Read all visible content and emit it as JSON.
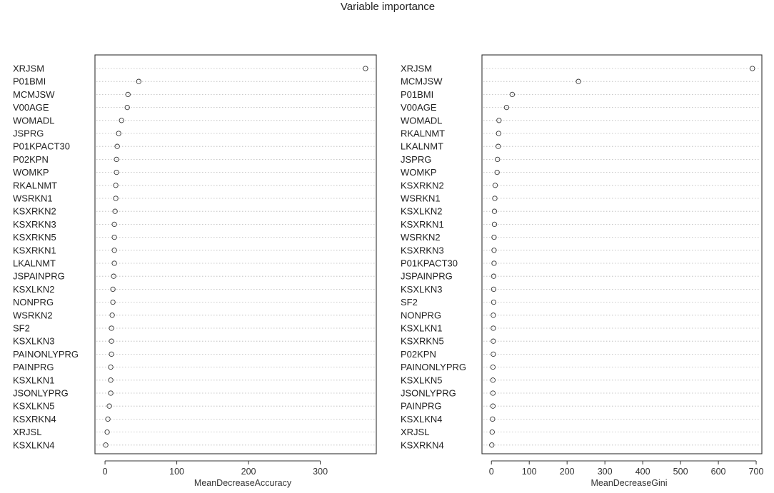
{
  "title": "Variable importance",
  "chart_data": [
    {
      "type": "scatter",
      "xlabel": "MeanDecreaseAccuracy",
      "xlim": [
        -14,
        378
      ],
      "xticks": [
        0,
        100,
        200,
        300
      ],
      "grid": "dotted horizontal guide per variable",
      "categories": [
        "XRJSM",
        "P01BMI",
        "MCMJSW",
        "V00AGE",
        "WOMADL",
        "JSPRG",
        "P01KPACT30",
        "P02KPN",
        "WOMKP",
        "RKALNMT",
        "WSRKN1",
        "KSXRKN2",
        "KSXRKN3",
        "KSXRKN5",
        "KSXRKN1",
        "LKALNMT",
        "JSPAINPRG",
        "KSXLKN2",
        "NONPRG",
        "WSRKN2",
        "SF2",
        "KSXLKN3",
        "PAINONLYPRG",
        "PAINPRG",
        "KSXLKN1",
        "JSONLYPRG",
        "KSXLKN5",
        "KSXRKN4",
        "XRJSL",
        "KSXLKN4"
      ],
      "values": [
        363,
        47,
        32,
        31,
        23,
        19,
        17,
        16,
        16,
        15,
        15,
        14,
        13,
        13,
        13,
        13,
        12,
        11,
        11,
        10,
        9,
        9,
        9,
        8,
        8,
        8,
        6,
        4,
        3,
        1
      ]
    },
    {
      "type": "scatter",
      "xlabel": "MeanDecreaseGini",
      "xlim": [
        -25,
        715
      ],
      "xticks": [
        0,
        100,
        200,
        300,
        400,
        500,
        600,
        700
      ],
      "grid": "dotted horizontal guide per variable",
      "categories": [
        "XRJSM",
        "MCMJSW",
        "P01BMI",
        "V00AGE",
        "WOMADL",
        "RKALNMT",
        "LKALNMT",
        "JSPRG",
        "WOMKP",
        "KSXRKN2",
        "WSRKN1",
        "KSXLKN2",
        "KSXRKN1",
        "WSRKN2",
        "KSXRKN3",
        "P01KPACT30",
        "JSPAINPRG",
        "KSXLKN3",
        "SF2",
        "NONPRG",
        "KSXLKN1",
        "KSXRKN5",
        "P02KPN",
        "PAINONLYPRG",
        "KSXLKN5",
        "JSONLYPRG",
        "PAINPRG",
        "KSXLKN4",
        "XRJSL",
        "KSXRKN4"
      ],
      "values": [
        690,
        230,
        55,
        40,
        20,
        19,
        18,
        16,
        15,
        10,
        9,
        8,
        8,
        7,
        7,
        7,
        6,
        6,
        6,
        5,
        5,
        5,
        5,
        4,
        4,
        4,
        4,
        3,
        2,
        1
      ]
    }
  ]
}
